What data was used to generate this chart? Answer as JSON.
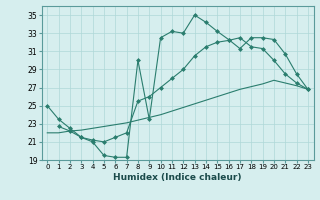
{
  "line1_x": [
    0,
    1,
    2,
    3,
    4,
    5,
    6,
    7,
    8,
    9,
    10,
    11,
    12,
    13,
    14,
    15,
    16,
    17,
    18,
    19,
    20,
    21,
    22,
    23
  ],
  "line1_y": [
    25.0,
    23.5,
    22.5,
    21.5,
    21.0,
    19.5,
    19.3,
    19.3,
    30.0,
    23.5,
    32.5,
    33.2,
    33.0,
    35.0,
    34.2,
    33.2,
    32.3,
    31.3,
    32.5,
    32.5,
    32.3,
    30.7,
    28.5,
    26.8
  ],
  "line2_x": [
    1,
    2,
    3,
    4,
    5,
    6,
    7,
    8,
    9,
    10,
    11,
    12,
    13,
    14,
    15,
    16,
    17,
    18,
    19,
    20,
    21,
    22,
    23
  ],
  "line2_y": [
    22.7,
    22.2,
    21.5,
    21.2,
    21.0,
    21.5,
    22.0,
    25.5,
    26.0,
    27.0,
    28.0,
    29.0,
    30.5,
    31.5,
    32.0,
    32.2,
    32.5,
    31.5,
    31.3,
    30.0,
    28.5,
    27.5,
    26.8
  ],
  "line3_x": [
    0,
    1,
    2,
    3,
    4,
    5,
    6,
    7,
    8,
    9,
    10,
    11,
    12,
    13,
    14,
    15,
    16,
    17,
    18,
    19,
    20,
    21,
    22,
    23
  ],
  "line3_y": [
    22.0,
    22.0,
    22.2,
    22.3,
    22.5,
    22.7,
    22.9,
    23.1,
    23.4,
    23.7,
    24.0,
    24.4,
    24.8,
    25.2,
    25.6,
    26.0,
    26.4,
    26.8,
    27.1,
    27.4,
    27.8,
    27.5,
    27.2,
    26.8
  ],
  "xlabel": "Humidex (Indice chaleur)",
  "xlim": [
    -0.5,
    23.5
  ],
  "ylim": [
    19,
    36
  ],
  "yticks": [
    19,
    21,
    23,
    25,
    27,
    29,
    31,
    33,
    35
  ],
  "xticks": [
    0,
    1,
    2,
    3,
    4,
    5,
    6,
    7,
    8,
    9,
    10,
    11,
    12,
    13,
    14,
    15,
    16,
    17,
    18,
    19,
    20,
    21,
    22,
    23
  ],
  "bg_color": "#d6eeee",
  "grid_color": "#afd8d8",
  "line_color": "#2a7d6e"
}
